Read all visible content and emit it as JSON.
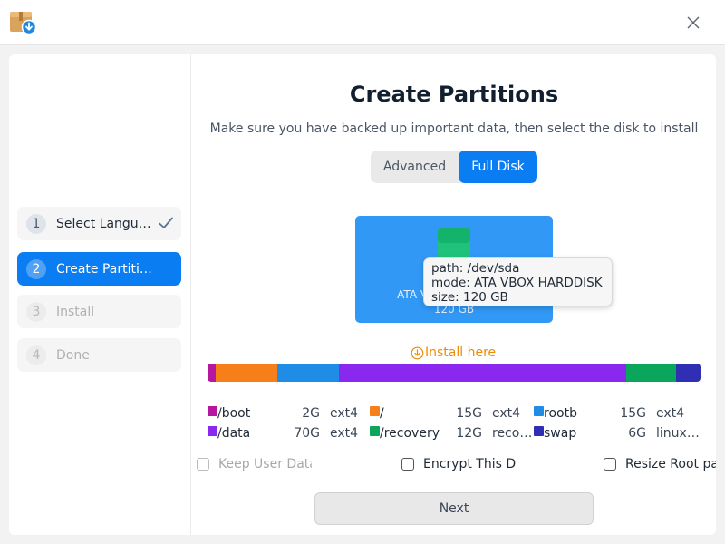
{
  "icons": {
    "app": "installer-download-icon",
    "close": "close-icon",
    "step_done": "checkmark-icon",
    "disk": "disk-drive-icon",
    "install_here": "download-circle-icon"
  },
  "colors": {
    "accent": "#0a7df2",
    "disk_card": "#3198f5",
    "install_here": "#f08a00"
  },
  "steps": [
    {
      "num": "1",
      "label": "Select Language",
      "state": "done"
    },
    {
      "num": "2",
      "label": "Create Partitions",
      "state": "active"
    },
    {
      "num": "3",
      "label": "Install",
      "state": "pending"
    },
    {
      "num": "4",
      "label": "Done",
      "state": "pending"
    }
  ],
  "main": {
    "title": "Create Partitions",
    "subtitle": "Make sure you have backed up important data, then select the disk to install",
    "modes": {
      "advanced": "Advanced",
      "full_disk": "Full Disk",
      "selected": "Full Disk"
    }
  },
  "disk": {
    "name": "ATA VBOX HARDDISK",
    "size": "120 GB",
    "tooltip": {
      "path": "path: /dev/sda",
      "mode": "mode: ATA VBOX HARDDISK",
      "size": "size: 120 GB"
    }
  },
  "install_here": "Install here",
  "partitions": [
    {
      "name": "/boot",
      "size": "2G",
      "fs": "ext4",
      "color": "#b5179e",
      "share": 2
    },
    {
      "name": "/",
      "size": "15G",
      "fs": "ext4",
      "color": "#f77f1a",
      "share": 15
    },
    {
      "name": "rootb",
      "size": "15G",
      "fs": "ext4",
      "color": "#1f8ce6",
      "share": 15
    },
    {
      "name": "/data",
      "size": "70G",
      "fs": "ext4",
      "color": "#8a28f0",
      "share": 70
    },
    {
      "name": "/recovery",
      "size": "12G",
      "fs": "recovery",
      "color": "#0aa65c",
      "share": 12
    },
    {
      "name": "swap",
      "size": "6G",
      "fs": "linux-swap",
      "color": "#2f2fb3",
      "share": 6
    }
  ],
  "options": {
    "keep_user_data": "Keep User Data",
    "encrypt": "Encrypt This Disk",
    "resize_root": "Resize Root partition"
  },
  "next": "Next"
}
